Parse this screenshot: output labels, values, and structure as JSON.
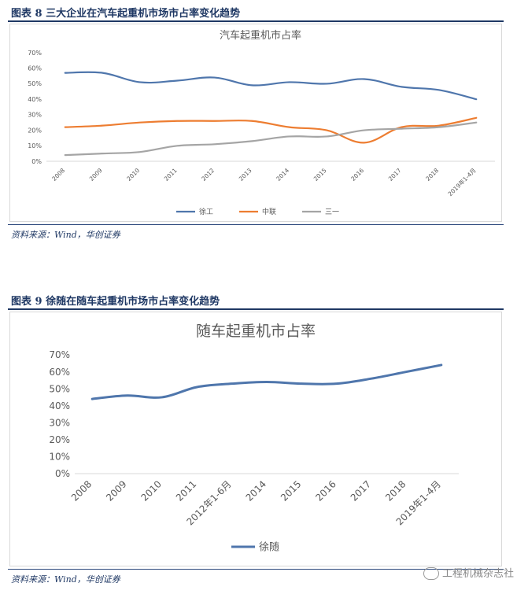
{
  "figures": [
    {
      "title": "图表 8   三大企业在汽车起重机市场市占率变化趋势",
      "source": "资料来源：Wind，华创证券"
    },
    {
      "title": "图表 9   徐随在随车起重机市场市占率变化趋势",
      "source": "资料来源：Wind，华创证券"
    }
  ],
  "watermark": "工程机械杂志社",
  "chart_data": [
    {
      "type": "line",
      "title": "汽车起重机市占率",
      "categories": [
        "2008",
        "2009",
        "2010",
        "2011",
        "2012",
        "2013",
        "2014",
        "2015",
        "2016",
        "2017",
        "2018",
        "2019年1-4月"
      ],
      "series": [
        {
          "name": "徐工",
          "color": "#4f76ac",
          "values": [
            57,
            57,
            51,
            52,
            54,
            49,
            51,
            50,
            53,
            48,
            46,
            40
          ]
        },
        {
          "name": "中联",
          "color": "#ed7d31",
          "values": [
            22,
            23,
            25,
            26,
            26,
            26,
            22,
            20,
            12,
            22,
            23,
            28
          ]
        },
        {
          "name": "三一",
          "color": "#a5a5a5",
          "values": [
            4,
            5,
            6,
            10,
            11,
            13,
            16,
            16,
            20,
            21,
            22,
            25
          ]
        }
      ],
      "y_ticks": [
        "0%",
        "10%",
        "20%",
        "30%",
        "40%",
        "50%",
        "60%",
        "70%"
      ],
      "ylim": [
        0,
        70
      ],
      "grid": false,
      "legend": "bottom"
    },
    {
      "type": "line",
      "title": "随车起重机市占率",
      "categories": [
        "2008",
        "2009",
        "2010",
        "2011",
        "2012年1-6月",
        "2014",
        "2015",
        "2016",
        "2017",
        "2018",
        "2019年1-4月"
      ],
      "series": [
        {
          "name": "徐随",
          "color": "#4f76ac",
          "values": [
            44,
            46,
            45,
            51,
            53,
            54,
            53,
            53,
            56,
            60,
            64
          ]
        }
      ],
      "y_ticks": [
        "0%",
        "10%",
        "20%",
        "30%",
        "40%",
        "50%",
        "60%",
        "70%"
      ],
      "ylim": [
        0,
        70
      ],
      "grid": false,
      "legend": "bottom"
    }
  ]
}
